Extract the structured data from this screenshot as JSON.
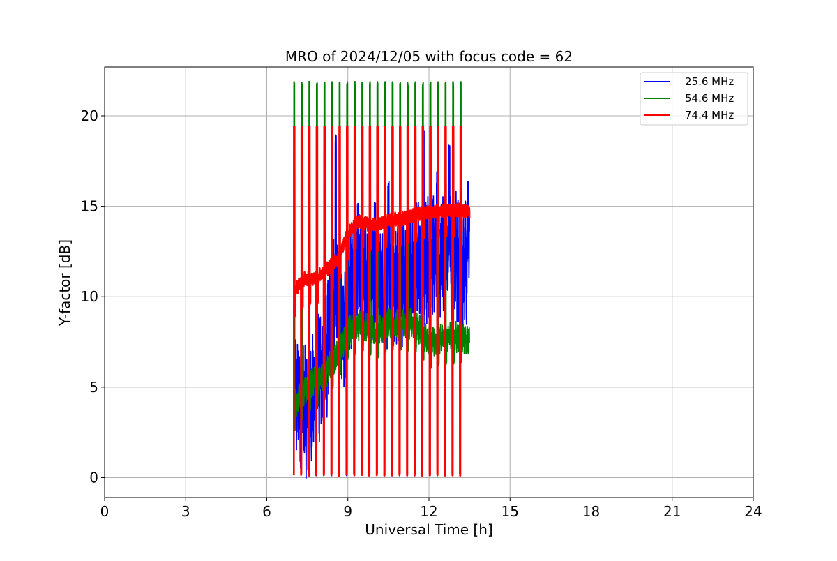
{
  "chart_data": {
    "type": "line",
    "title": "MRO of 2024/12/05 with focus code = 62",
    "xlabel": "Universal Time [h]",
    "ylabel": "Y-factor [dB]",
    "xlim": [
      0,
      24
    ],
    "ylim": [
      -1.1,
      22.7
    ],
    "xticks": [
      0,
      3,
      6,
      9,
      12,
      15,
      18,
      21,
      24
    ],
    "yticks": [
      0,
      5,
      10,
      15,
      20
    ],
    "grid": true,
    "legend_position": "top-right",
    "time_range": [
      7.0,
      13.5
    ],
    "series": [
      {
        "name": "25.6 MHz",
        "color": "#0000ff",
        "keypoints_x": [
          7.0,
          7.3,
          7.6,
          7.9,
          8.2,
          8.5,
          8.8,
          9.1,
          9.4,
          9.7,
          10.0,
          10.3,
          10.6,
          10.9,
          11.2,
          11.5,
          11.8,
          12.1,
          12.4,
          12.7,
          13.0,
          13.3,
          13.5
        ],
        "keypoints_y": [
          5.0,
          4.0,
          3.5,
          5.5,
          6.5,
          10.5,
          8.0,
          10.5,
          12.0,
          11.0,
          11.5,
          10.0,
          11.0,
          10.5,
          11.0,
          12.0,
          11.5,
          12.5,
          12.0,
          12.5,
          12.0,
          11.5,
          12.0
        ],
        "spikes": [
          {
            "x": 8.55,
            "y": 19.0
          },
          {
            "x": 9.5,
            "y": 14.2
          },
          {
            "x": 10.0,
            "y": 15.2
          },
          {
            "x": 10.5,
            "y": 16.5
          },
          {
            "x": 11.8,
            "y": 19.4
          },
          {
            "x": 12.3,
            "y": 17.2
          },
          {
            "x": 12.75,
            "y": 18.5
          },
          {
            "x": 13.45,
            "y": 16.4
          }
        ]
      },
      {
        "name": "54.6 MHz",
        "color": "#008000",
        "keypoints_x": [
          7.0,
          7.5,
          8.0,
          8.5,
          9.0,
          9.5,
          10.0,
          10.5,
          11.0,
          11.5,
          12.0,
          12.5,
          13.0,
          13.5
        ],
        "keypoints_y": [
          4.0,
          5.0,
          5.5,
          6.5,
          8.0,
          8.5,
          8.0,
          8.5,
          8.5,
          8.5,
          7.5,
          7.7,
          7.8,
          7.6
        ],
        "cal_high": 21.6
      },
      {
        "name": "74.4 MHz",
        "color": "#ff0000",
        "keypoints_x": [
          7.0,
          7.4,
          7.8,
          8.2,
          8.6,
          9.0,
          9.4,
          9.8,
          10.2,
          10.6,
          11.0,
          11.4,
          11.8,
          12.2,
          12.6,
          13.0,
          13.5
        ],
        "keypoints_y": [
          10.3,
          11.0,
          11.0,
          11.5,
          12.0,
          13.5,
          14.2,
          14.0,
          14.0,
          14.3,
          14.3,
          14.5,
          14.6,
          14.7,
          14.8,
          14.8,
          14.7
        ],
        "cal_high": 19.4
      }
    ],
    "calibration_x": [
      7.02,
      7.3,
      7.58,
      7.86,
      8.14,
      8.42,
      8.7,
      8.98,
      9.26,
      9.54,
      9.82,
      10.1,
      10.38,
      10.66,
      10.94,
      11.22,
      11.5,
      11.78,
      12.06,
      12.34,
      12.62,
      12.9,
      13.18
    ]
  }
}
